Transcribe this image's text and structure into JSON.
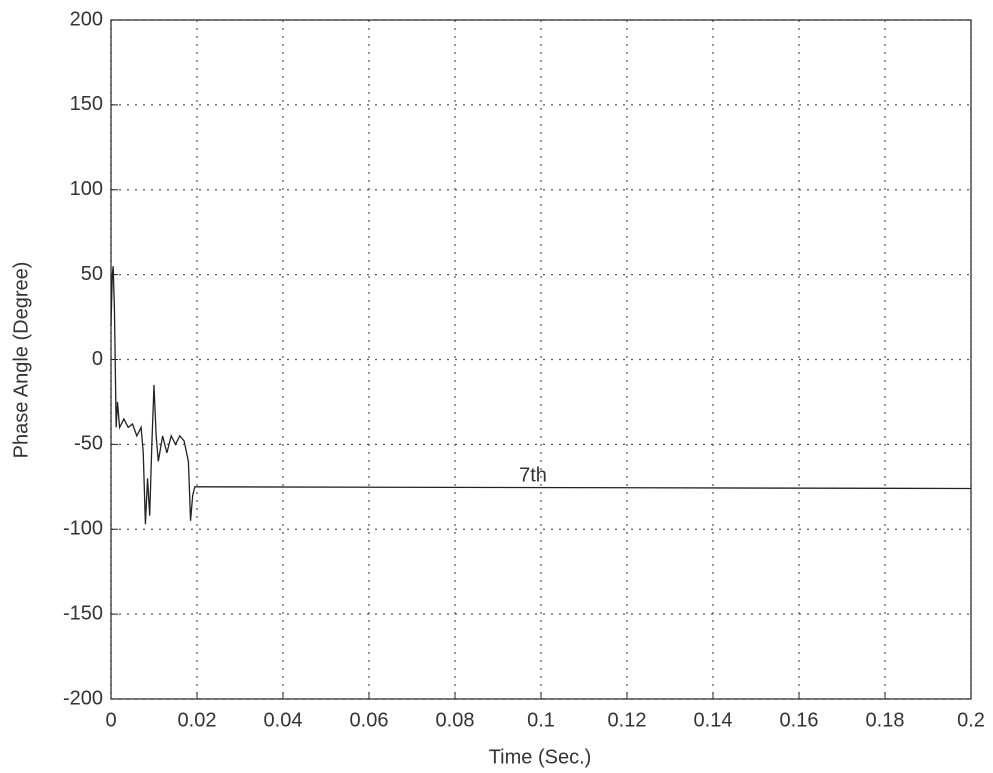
{
  "chart_data": {
    "type": "line",
    "xlabel": "Time (Sec.)",
    "ylabel": "Phase Angle (Degree)",
    "annotation": "7th",
    "x": [
      0,
      0.0003,
      0.0005,
      0.0008,
      0.0012,
      0.0015,
      0.002,
      0.003,
      0.004,
      0.005,
      0.006,
      0.007,
      0.0075,
      0.008,
      0.0085,
      0.009,
      0.0095,
      0.01,
      0.0105,
      0.011,
      0.012,
      0.013,
      0.014,
      0.015,
      0.016,
      0.017,
      0.018,
      0.0185,
      0.019,
      0.0195,
      0.02,
      0.2
    ],
    "series": [
      {
        "name": "7th",
        "color": "#222222",
        "values": [
          20,
          50,
          55,
          30,
          -40,
          -25,
          -40,
          -35,
          -40,
          -38,
          -45,
          -40,
          -55,
          -97,
          -70,
          -92,
          -50,
          -15,
          -45,
          -60,
          -45,
          -55,
          -45,
          -50,
          -45,
          -48,
          -60,
          -95,
          -80,
          -75,
          -75,
          -76
        ]
      }
    ],
    "xlim": [
      0,
      0.2
    ],
    "xticks": [
      0,
      0.02,
      0.04,
      0.06,
      0.08,
      0.1,
      0.12,
      0.14,
      0.16,
      0.18,
      0.2
    ],
    "ylim": [
      -200,
      200
    ],
    "yticks": [
      -200,
      -150,
      -100,
      -50,
      0,
      50,
      100,
      150,
      200
    ],
    "grid": true
  }
}
